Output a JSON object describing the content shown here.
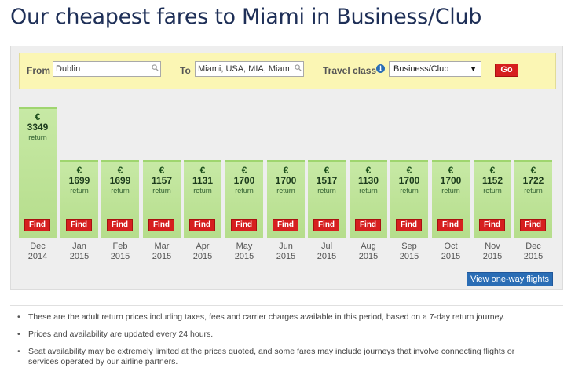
{
  "page": {
    "title": "Our cheapest fares to Miami in Business/Club"
  },
  "search": {
    "from_label": "From",
    "from_value": "Dublin",
    "to_label": "To",
    "to_value": "Miami, USA, MIA, Miami",
    "class_label": "Travel class",
    "class_value": "Business/Club",
    "go_label": "Go",
    "info_icon": "info-icon",
    "search_icon": "search-icon"
  },
  "fares": {
    "currency": "€",
    "return_label": "return",
    "find_label": "Find",
    "max_value": 3349,
    "months": [
      {
        "month": "Dec",
        "year": "2014",
        "price": 3349
      },
      {
        "month": "Jan",
        "year": "2015",
        "price": 1699
      },
      {
        "month": "Feb",
        "year": "2015",
        "price": 1699
      },
      {
        "month": "Mar",
        "year": "2015",
        "price": 1157
      },
      {
        "month": "Apr",
        "year": "2015",
        "price": 1131
      },
      {
        "month": "May",
        "year": "2015",
        "price": 1700
      },
      {
        "month": "Jun",
        "year": "2015",
        "price": 1700
      },
      {
        "month": "Jul",
        "year": "2015",
        "price": 1517
      },
      {
        "month": "Aug",
        "year": "2015",
        "price": 1130
      },
      {
        "month": "Sep",
        "year": "2015",
        "price": 1700
      },
      {
        "month": "Oct",
        "year": "2015",
        "price": 1700
      },
      {
        "month": "Nov",
        "year": "2015",
        "price": 1152
      },
      {
        "month": "Dec",
        "year": "2015",
        "price": 1722
      }
    ]
  },
  "oneway": {
    "label": "View one-way flights"
  },
  "notes": [
    "These are the adult return prices including taxes, fees and carrier charges available in this period, based on a 7-day return journey.",
    "Prices and availability are updated every 24 hours.",
    "Seat availability may be extremely limited at the prices quoted, and some fares may include journeys that involve connecting flights or services operated by our airline partners."
  ],
  "colors": {
    "title": "#1e2f57",
    "bar": "#c7e9a5",
    "find": "#d61f1f",
    "oneway": "#2a6db5",
    "search_bg": "#fbf6b4"
  }
}
